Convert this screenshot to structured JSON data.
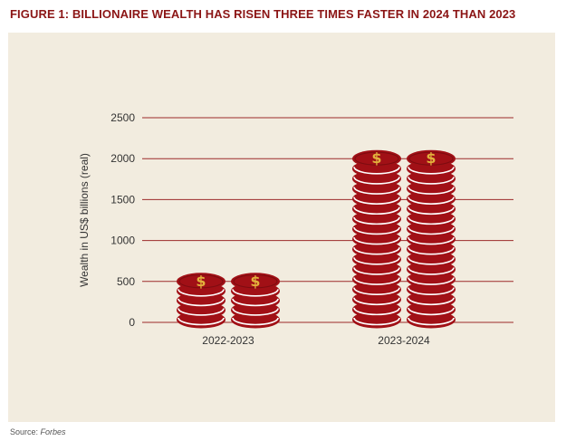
{
  "figure_title": "FIGURE 1: BILLIONAIRE WEALTH HAS RISEN THREE TIMES FASTER IN 2024 THAN 2023",
  "source": {
    "prefix": "Source: ",
    "name": "Forbes"
  },
  "colors": {
    "accent": "#8b1515",
    "coin": "#a11016",
    "coin_stripe": "#ffffff",
    "dollar": "#e2b13c",
    "panel_bg": "#f2ecdf",
    "gridline": "#9c2a2a"
  },
  "chart_data": {
    "type": "bar",
    "style": "stacked coin pictogram",
    "categories": [
      "2022-2023",
      "2023-2024"
    ],
    "values": [
      500,
      2000
    ],
    "coin_stacks_per_category": 2,
    "coin_symbol": "$",
    "ylabel": "Wealth in US$ billions (real)",
    "xlabel": "",
    "ylim": [
      0,
      2500
    ],
    "yticks": [
      0,
      500,
      1000,
      1500,
      2000,
      2500
    ],
    "grid": true,
    "legend": "none"
  }
}
